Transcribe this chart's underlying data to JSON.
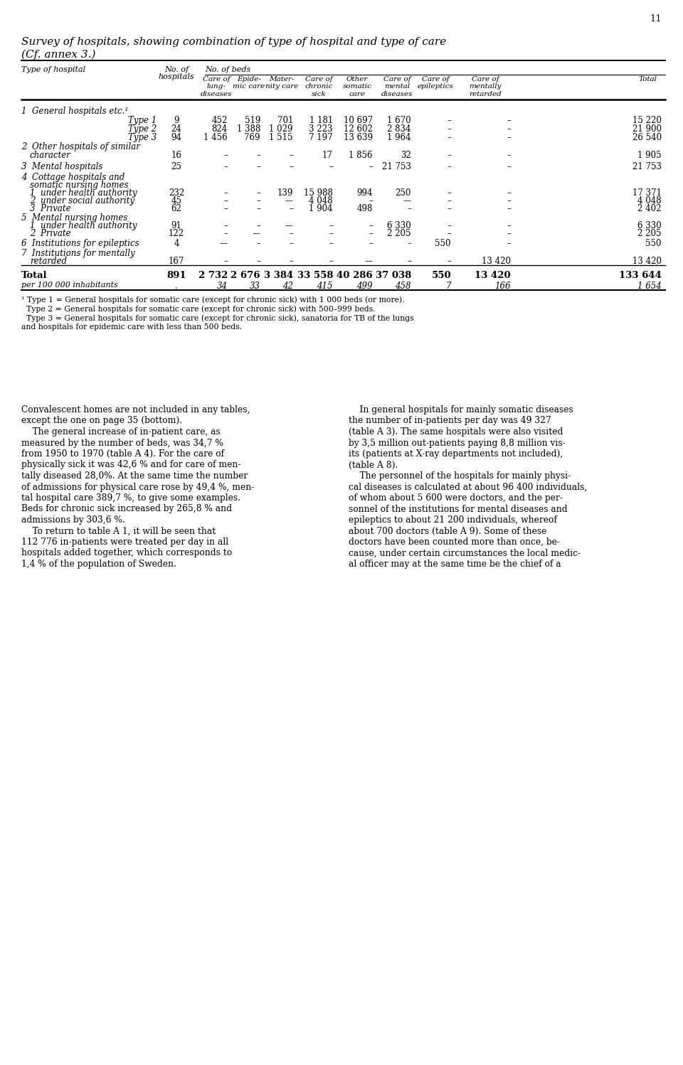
{
  "page_number": "11",
  "title_line1": "Survey of hospitals, showing combination of type of hospital and type of care",
  "title_line2": "(Cf. annex 3.)",
  "footnote": [
    "¹ Type 1 = General hospitals for somatic care (except for chronic sick) with 1 000 beds (or more).",
    "  Type 2 = General hospitals for somatic care (except for chronic sick) with 500–999 beds.",
    "  Type 3 = General hospitals for somatic care (except for chronic sick), sanatoria for TB of the lungs",
    "and hospitals for epidemic care with less than 500 beds."
  ],
  "left_col_text": [
    "Convalescent homes are not included in any tables,",
    "except the one on page 35 (bottom).",
    "    The general increase of in-patient care, as",
    "measured by the number of beds, was 34,7 %",
    "from 1950 to 1970 (table A 4). For the care of",
    "physically sick it was 42,6 % and for care of men-",
    "tally diseased 28,0%. At the same time the number",
    "of admissions for physical care rose by 49,4 %, men-",
    "tal hospital care 389,7 %, to give some examples.",
    "Beds for chronic sick increased by 265,8 % and",
    "admissions by 303,6 %.",
    "    To return to table A 1, it will be seen that",
    "112 776 in-patients were treated per day in all",
    "hospitals added together, which corresponds to",
    "1,4 % of the population of Sweden."
  ],
  "left_bold": [
    false,
    false,
    false,
    false,
    false,
    false,
    false,
    false,
    false,
    false,
    false,
    false,
    false,
    false,
    false
  ],
  "right_col_text": [
    "    In general hospitals for mainly somatic diseases",
    "the number of in-patients per day was 49 327",
    "(table A 3). The same hospitals were also visited",
    "by 3,5 million out-patients paying 8,8 million vis-",
    "its (patients at X-ray departments not included),",
    "(table A 8).",
    "    The personnel of the hospitals for mainly physi-",
    "cal diseases is calculated at about 96 400 individuals,",
    "of whom about 5 600 were doctors, and the per-",
    "sonnel of the institutions for mental diseases and",
    "epileptics to about 21 200 individuals, whereof",
    "about 700 doctors (table A 9). Some of these",
    "doctors have been counted more than once, be-",
    "cause, under certain circumstances the local medic-",
    "al officer may at the same time be the chief of a"
  ]
}
